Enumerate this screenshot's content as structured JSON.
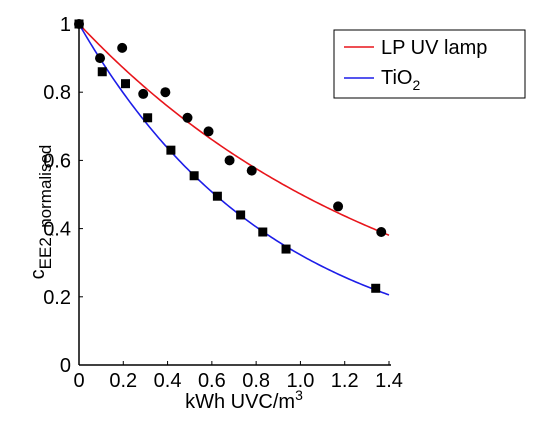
{
  "chart_data": {
    "type": "scatter",
    "xlabel": {
      "main": "kWh UVC/m",
      "sup": "3"
    },
    "ylabel": {
      "main": "c",
      "sub": "EE2, normalised"
    },
    "xlim": [
      0,
      1.4
    ],
    "ylim": [
      0,
      1
    ],
    "xticks": [
      "0",
      "0.2",
      "0.4",
      "0.6",
      "0.8",
      "1.0",
      "1.2",
      "1.4"
    ],
    "yticks": [
      "0",
      "0.2",
      "0.4",
      "0.6",
      "0.8",
      "1"
    ],
    "grid": false,
    "legend_position": "top-right",
    "series": [
      {
        "name": "LP UV lamp",
        "line_color": "#e8151b",
        "marker": "circle",
        "points": [
          [
            0.0,
            1.0
          ],
          [
            0.095,
            0.9
          ],
          [
            0.195,
            0.93
          ],
          [
            0.29,
            0.795
          ],
          [
            0.39,
            0.8
          ],
          [
            0.49,
            0.725
          ],
          [
            0.585,
            0.685
          ],
          [
            0.68,
            0.6
          ],
          [
            0.78,
            0.57
          ],
          [
            1.17,
            0.465
          ],
          [
            1.365,
            0.39
          ]
        ],
        "fit": {
          "form": "exp",
          "k": 0.69
        }
      },
      {
        "name": "TiO2",
        "name_parts": {
          "main": "TiO",
          "sub": "2"
        },
        "line_color": "#1d1de8",
        "marker": "square",
        "points": [
          [
            0.0,
            1.0
          ],
          [
            0.105,
            0.86
          ],
          [
            0.21,
            0.825
          ],
          [
            0.31,
            0.725
          ],
          [
            0.415,
            0.63
          ],
          [
            0.52,
            0.555
          ],
          [
            0.625,
            0.495
          ],
          [
            0.73,
            0.44
          ],
          [
            0.83,
            0.39
          ],
          [
            0.935,
            0.34
          ],
          [
            1.34,
            0.225
          ]
        ],
        "fit": {
          "form": "exp",
          "k": 1.13
        }
      }
    ]
  }
}
